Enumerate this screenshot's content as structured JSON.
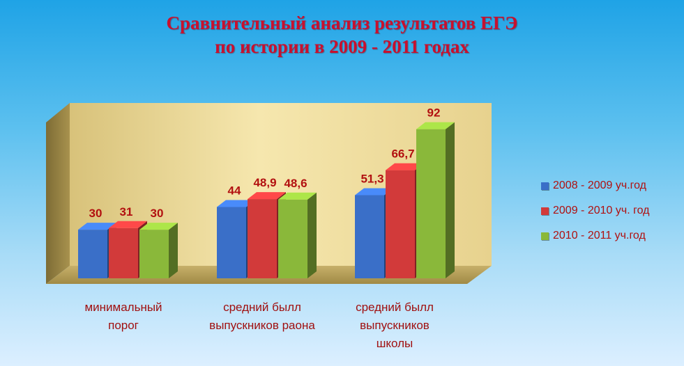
{
  "title": {
    "line1": "Сравнительный анализ результатов ЕГЭ",
    "line2": "по истории в 2009 - 2011 годах"
  },
  "colors": {
    "series": [
      "#3a6fc8",
      "#d23a3a",
      "#8ab83a"
    ],
    "title": "#c8102e",
    "labels": "#b21010"
  },
  "chart_data": {
    "type": "bar",
    "title": "Сравнительный анализ результатов ЕГЭ по истории в 2009 - 2011 годах",
    "categories": [
      [
        "минимальный",
        "порог"
      ],
      [
        "средний былл",
        "выпускников раона"
      ],
      [
        "средний былл",
        "выпускников",
        "школы"
      ]
    ],
    "series": [
      {
        "name": "2008 - 2009 уч.год",
        "values": [
          30,
          44,
          51.3
        ],
        "labels": [
          "30",
          "44",
          "51,3"
        ]
      },
      {
        "name": "2009 - 2010 уч. год",
        "values": [
          31,
          48.9,
          66.7
        ],
        "labels": [
          "31",
          "48,9",
          "66,7"
        ]
      },
      {
        "name": "2010 - 2011 уч.год",
        "values": [
          30,
          48.6,
          92
        ],
        "labels": [
          "30",
          "48,6",
          "92"
        ]
      }
    ],
    "ylim": [
      0,
      100
    ],
    "grid": false,
    "legend_position": "right",
    "three_d": true
  }
}
